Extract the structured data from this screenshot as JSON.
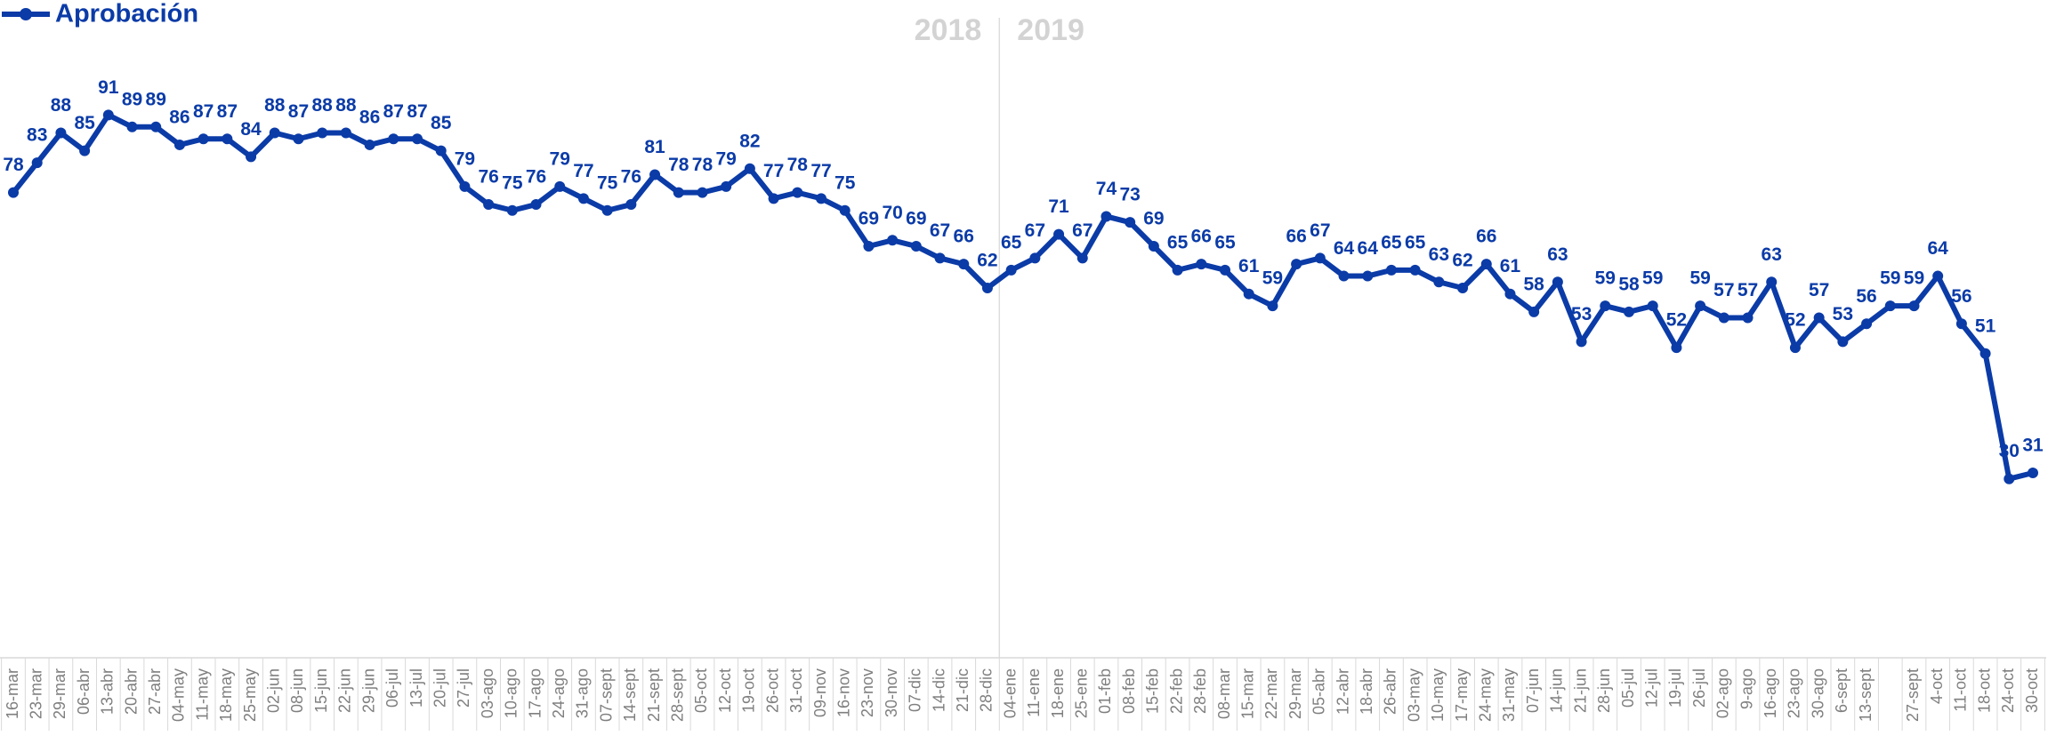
{
  "chart_data": {
    "type": "line",
    "legend": "top-left",
    "annotations": [
      "2018",
      "2019"
    ],
    "categories": [
      "16-mar",
      "23-mar",
      "29-mar",
      "06-abr",
      "13-abr",
      "20-abr",
      "27-abr",
      "04-may",
      "11-may",
      "18-may",
      "25-may",
      "02-jun",
      "08-jun",
      "15-jun",
      "22-jun",
      "29-jun",
      "06-jul",
      "13-jul",
      "20-jul",
      "27-jul",
      "03-ago",
      "10-ago",
      "17-ago",
      "24-ago",
      "31-ago",
      "07-sept",
      "14-sept",
      "21-sept",
      "28-sept",
      "05-oct",
      "12-oct",
      "19-oct",
      "26-oct",
      "31-oct",
      "09-nov",
      "16-nov",
      "23-nov",
      "30-nov",
      "07-dic",
      "14-dic",
      "21-dic",
      "28-dic",
      "04-ene",
      "11-ene",
      "18-ene",
      "25-ene",
      "01-feb",
      "08-feb",
      "15-feb",
      "22-feb",
      "28-feb",
      "08-mar",
      "15-mar",
      "22-mar",
      "29-mar",
      "05-abr",
      "12-abr",
      "18-abr",
      "26-abr",
      "03-may",
      "10-may",
      "17-may",
      "24-may",
      "31-may",
      "07-jun",
      "14-jun",
      "21-jun",
      "28-jun",
      "05-jul",
      "12-jul",
      "19-jul",
      "26-jul",
      "02-ago",
      "9-ago",
      "16-ago",
      "23-ago",
      "30-ago",
      "6-sept",
      "13-sept",
      null,
      "27-sept",
      "4-oct",
      "11-oct",
      "18-oct",
      "24-oct",
      "30-oct"
    ],
    "series": [
      {
        "name": "Aprobación",
        "color": "#0b3ba7",
        "values": [
          78,
          83,
          88,
          85,
          91,
          89,
          89,
          86,
          87,
          87,
          84,
          88,
          87,
          88,
          88,
          86,
          87,
          87,
          85,
          79,
          76,
          75,
          76,
          79,
          77,
          75,
          76,
          81,
          78,
          78,
          79,
          82,
          77,
          78,
          77,
          75,
          69,
          70,
          69,
          67,
          66,
          62,
          65,
          67,
          71,
          67,
          74,
          73,
          69,
          65,
          66,
          65,
          61,
          59,
          66,
          67,
          64,
          64,
          65,
          65,
          63,
          62,
          66,
          61,
          58,
          63,
          53,
          59,
          58,
          59,
          52,
          59,
          57,
          57,
          63,
          52,
          57,
          53,
          56,
          59,
          59,
          64,
          56,
          51,
          30,
          31
        ]
      }
    ],
    "ylim": [
      0,
      100
    ]
  }
}
